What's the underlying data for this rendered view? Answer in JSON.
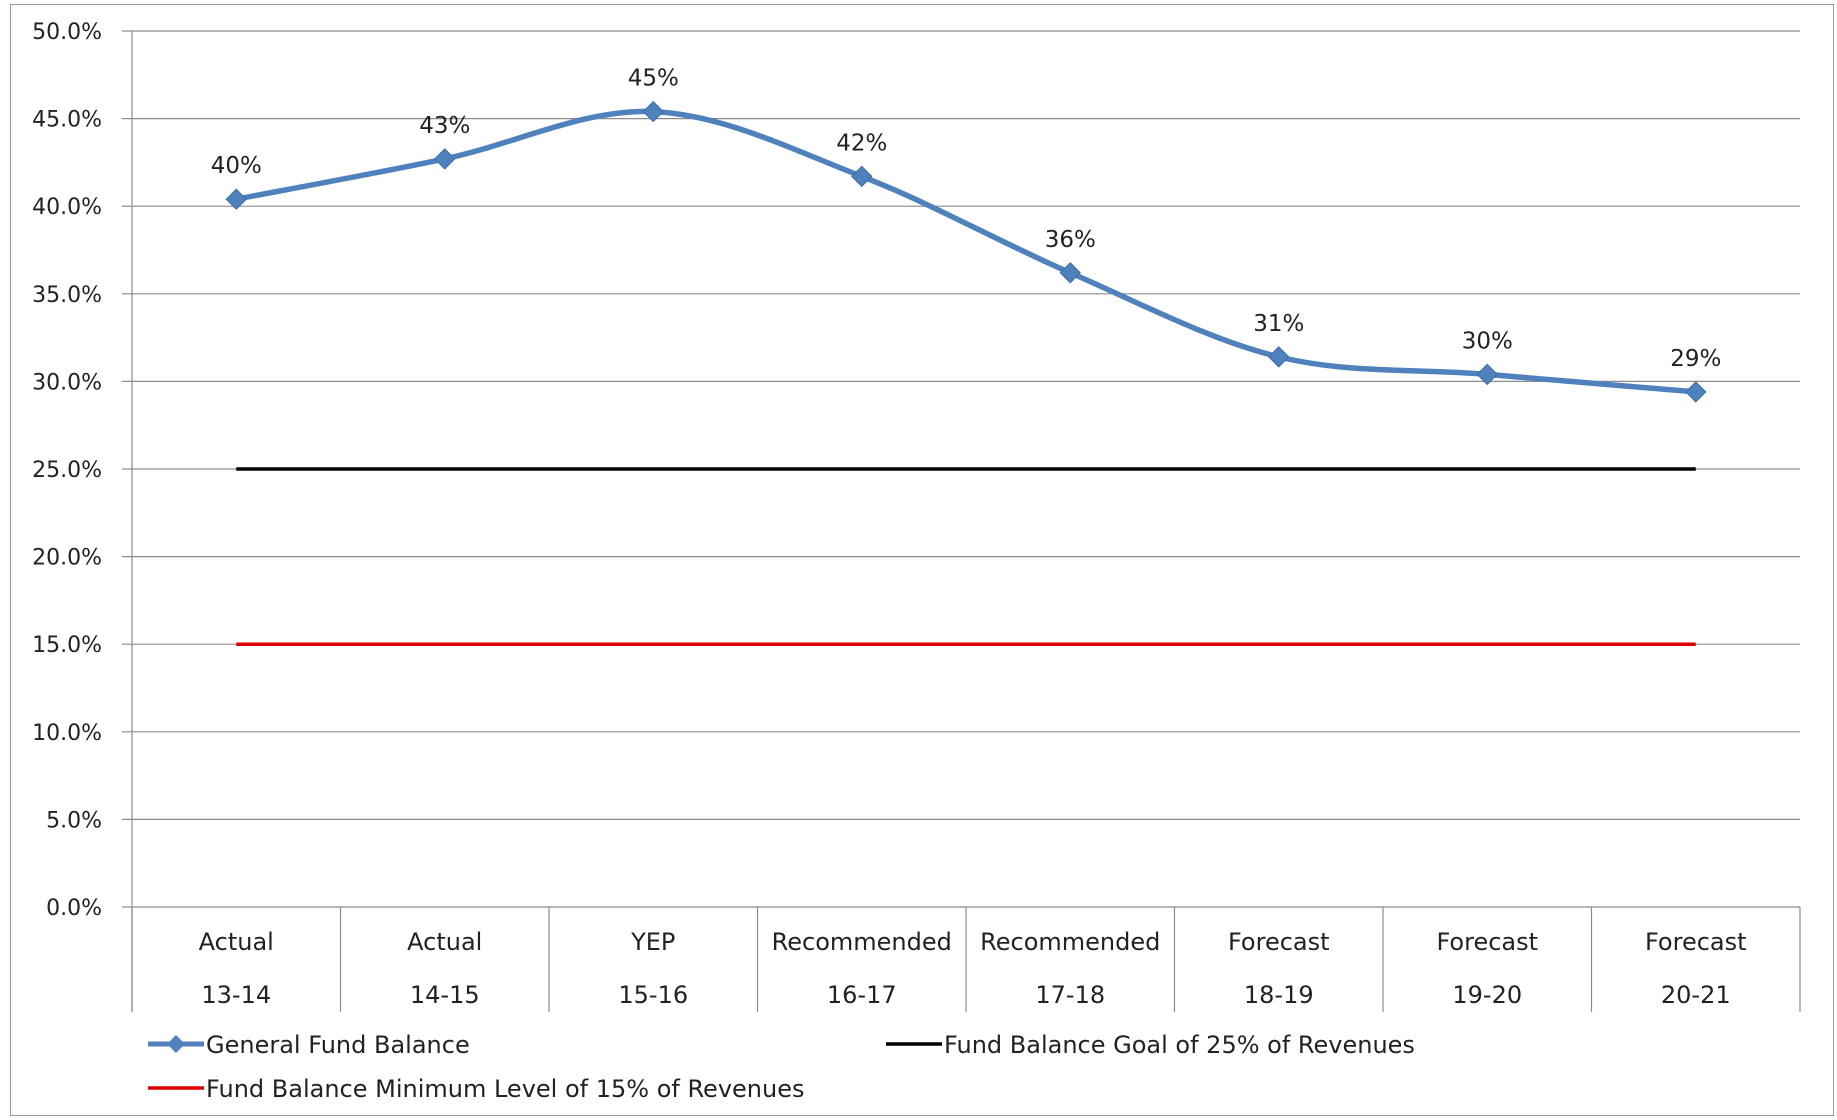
{
  "chart_data": {
    "type": "line",
    "categories": [
      [
        "Actual",
        "13-14"
      ],
      [
        "Actual",
        "14-15"
      ],
      [
        "YEP",
        "15-16"
      ],
      [
        "Recommended",
        "16-17"
      ],
      [
        "Recommended",
        "17-18"
      ],
      [
        "Forecast",
        "18-19"
      ],
      [
        "Forecast",
        "19-20"
      ],
      [
        "Forecast",
        "20-21"
      ]
    ],
    "y_ticks": [
      "0.0%",
      "5.0%",
      "10.0%",
      "15.0%",
      "20.0%",
      "25.0%",
      "30.0%",
      "35.0%",
      "40.0%",
      "45.0%",
      "50.0%"
    ],
    "ylim": [
      0,
      50
    ],
    "grid": "horizontal",
    "legend_position": "bottom",
    "series": [
      {
        "name": "General Fund Balance",
        "values": [
          40.4,
          42.7,
          45.4,
          41.7,
          36.2,
          31.4,
          30.4,
          29.4
        ],
        "data_labels": [
          "40%",
          "43%",
          "45%",
          "42%",
          "36%",
          "31%",
          "30%",
          "29%"
        ],
        "color": "#4f81bd",
        "marker": "diamond",
        "smooth": true
      },
      {
        "name": "Fund Balance Goal of 25% of Revenues",
        "values": [
          25,
          25,
          25,
          25,
          25,
          25,
          25,
          25
        ],
        "color": "#000000"
      },
      {
        "name": "Fund Balance Minimum Level of 15% of Revenues",
        "values": [
          15,
          15,
          15,
          15,
          15,
          15,
          15,
          15
        ],
        "color": "#e00000"
      }
    ]
  }
}
